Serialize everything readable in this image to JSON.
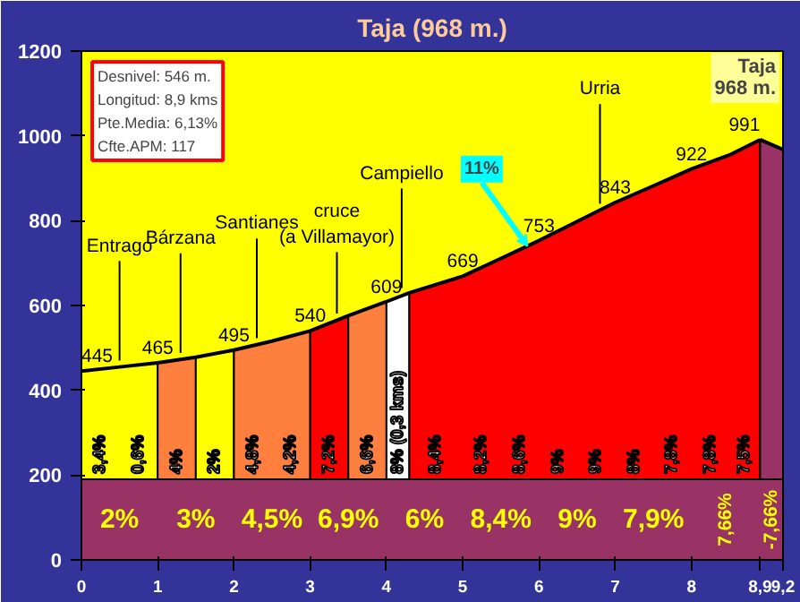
{
  "chart_data": {
    "type": "area",
    "title": "Taja (968 m.)",
    "series": [
      {
        "color": "#ffff00",
        "x": [
          0,
          0.5,
          1
        ],
        "values": [
          445,
          455,
          465
        ]
      },
      {
        "color": "#ff7f3f",
        "x": [
          1,
          1.5
        ],
        "values": [
          465,
          478
        ]
      },
      {
        "color": "#ffff00",
        "x": [
          1.5,
          2
        ],
        "values": [
          478,
          495
        ]
      },
      {
        "color": "#ff7f3f",
        "x": [
          2,
          2.5,
          3
        ],
        "values": [
          495,
          516,
          540
        ]
      },
      {
        "color": "#ff0000",
        "x": [
          3,
          3.5
        ],
        "values": [
          540,
          576
        ]
      },
      {
        "color": "#ff7f3f",
        "x": [
          3.5,
          4
        ],
        "values": [
          576,
          609
        ]
      },
      {
        "color": "#ffffff",
        "x": [
          4,
          4.3
        ],
        "values": [
          609,
          630
        ]
      },
      {
        "color": "#ff0000",
        "x": [
          4.3,
          5,
          5.5,
          6,
          6.5,
          7,
          7.5,
          8,
          8.5,
          8.9
        ],
        "values": [
          630,
          669,
          711,
          753,
          798,
          843,
          882,
          922,
          955,
          991
        ]
      },
      {
        "color": "#993366",
        "x": [
          8.9,
          9.2
        ],
        "values": [
          991,
          968
        ]
      }
    ],
    "xlim": [
      0,
      9.2
    ],
    "xticks": [
      0,
      1,
      2,
      3,
      4,
      5,
      6,
      7,
      8,
      {
        "value": 8.9,
        "label": "8,9"
      },
      {
        "value": 9.2,
        "label": "9,2"
      }
    ],
    "ylim": [
      0,
      1200
    ],
    "yticks": [
      0,
      200,
      400,
      600,
      800,
      1000,
      1200
    ],
    "grid": false,
    "bands": [
      {
        "axis": "y",
        "from": 0,
        "to": 190,
        "color": "#993366",
        "label": null
      }
    ],
    "annotations": [
      "Desnivel: 546 m.",
      "Longitud: 8,9 kms",
      "Pte.Media: 6,13%",
      "Cfte.APM: 117",
      "Taja\n968 m.",
      "3,4%",
      "0,6%",
      "4%",
      "2%",
      "4,8%",
      "4,2%",
      "7,2%",
      "6,6%",
      "8% (0,3 kms)",
      "8,4%",
      "8,2%",
      "8,6%",
      "9%",
      "9%",
      "8%",
      "7,8%",
      "7,8%",
      "7,5%",
      "2%",
      "3%",
      "4,5%",
      "6,9%",
      "6%",
      "8,4%",
      "9%",
      "7,9%",
      "7,66%",
      "-7,66%",
      {
        "text": "445",
        "x": 0,
        "y": 445
      },
      {
        "text": "465",
        "x": 1,
        "y": 465
      },
      {
        "text": "495",
        "x": 2,
        "y": 495
      },
      {
        "text": "540",
        "x": 3,
        "y": 540
      },
      {
        "text": "609",
        "x": 4,
        "y": 609
      },
      {
        "text": "669",
        "x": 5,
        "y": 669
      },
      {
        "text": "753",
        "x": 6,
        "y": 753
      },
      {
        "text": "843",
        "x": 7,
        "y": 843
      },
      {
        "text": "922",
        "x": 8,
        "y": 922
      },
      {
        "text": "991",
        "x": 8.9,
        "y": 991
      },
      {
        "text": "Entrago",
        "x": 0.5,
        "y": 455
      },
      {
        "text": "Bárzana",
        "x": 1.3,
        "y": 473
      },
      {
        "text": "Santianes",
        "x": 2.3,
        "y": 508
      },
      {
        "text": "cruce\n(a Villamayor)",
        "x": 3.35,
        "y": 566
      },
      {
        "text": "Campiello",
        "x": 4.2,
        "y": 626
      },
      {
        "text": "Urria",
        "x": 6.8,
        "y": 825
      },
      {
        "text": "11%",
        "x": 5.85,
        "y": 740
      }
    ]
  }
}
